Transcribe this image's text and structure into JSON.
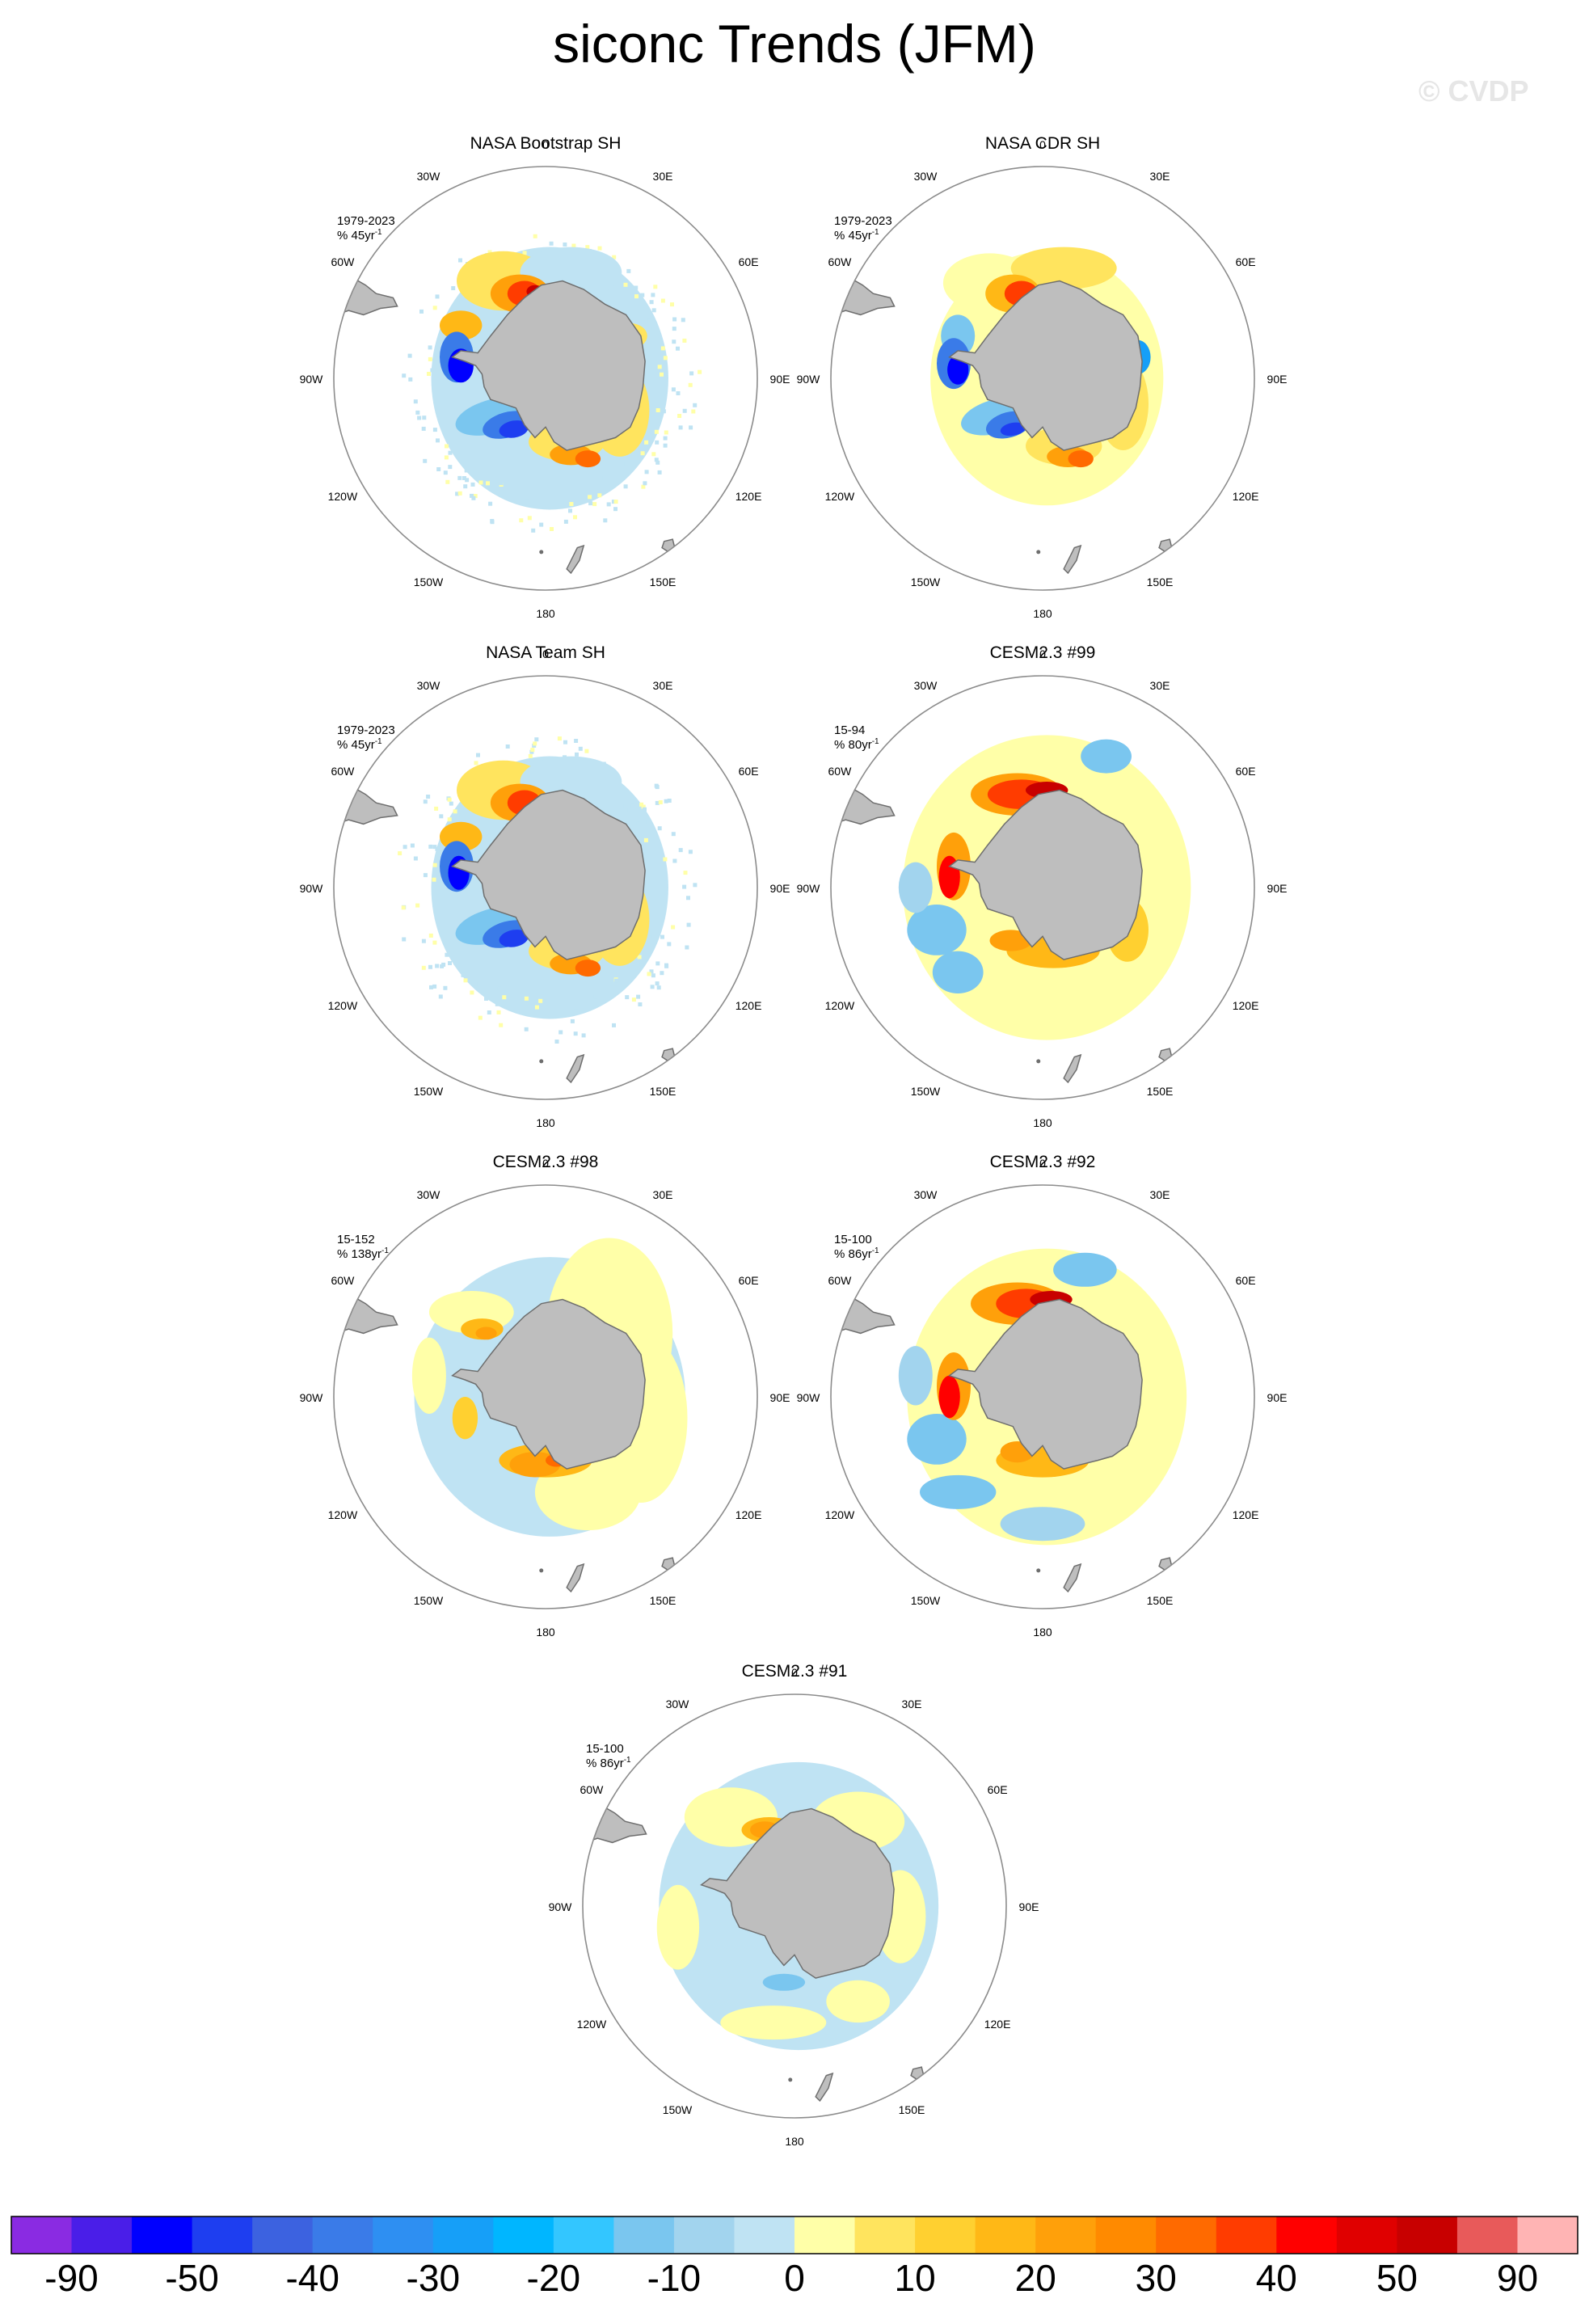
{
  "title": "siconc Trends (JFM)",
  "watermark": "© CVDP",
  "longitude_labels": [
    "0",
    "30E",
    "60E",
    "90E",
    "120E",
    "150E",
    "180",
    "150W",
    "120W",
    "90W",
    "60W",
    "30W"
  ],
  "panels": [
    {
      "title": "NASA Bootstrap SH",
      "period": "1979-2023",
      "scale_text": "% 45yr",
      "scale_sup": "-1",
      "pattern": "obs1"
    },
    {
      "title": "NASA CDR SH",
      "period": "1979-2023",
      "scale_text": "% 45yr",
      "scale_sup": "-1",
      "pattern": "obs2"
    },
    {
      "title": "NASA Team SH",
      "period": "1979-2023",
      "scale_text": "% 45yr",
      "scale_sup": "-1",
      "pattern": "obs3"
    },
    {
      "title": "CESM2.3 #99",
      "period": "15-94",
      "scale_text": "% 80yr",
      "scale_sup": "-1",
      "pattern": "m99"
    },
    {
      "title": "CESM2.3 #98",
      "period": "15-152",
      "scale_text": "% 138yr",
      "scale_sup": "-1",
      "pattern": "m98"
    },
    {
      "title": "CESM2.3 #92",
      "period": "15-100",
      "scale_text": "% 86yr",
      "scale_sup": "-1",
      "pattern": "m92"
    },
    {
      "title": "CESM2.3 #91",
      "period": "15-100",
      "scale_text": "% 86yr",
      "scale_sup": "-1",
      "pattern": "m91"
    }
  ],
  "colorbar": {
    "colors": [
      "#8a2be2",
      "#4a1ee8",
      "#0000ff",
      "#1e3ef0",
      "#3c62e0",
      "#3a7be8",
      "#2e8ff2",
      "#169ff8",
      "#00b6ff",
      "#33c6ff",
      "#7ac6ef",
      "#a2d4ee",
      "#bfe3f3",
      "#ffffa8",
      "#ffe45e",
      "#ffd030",
      "#ffb816",
      "#ffa00a",
      "#ff8a00",
      "#ff6a00",
      "#ff3c00",
      "#ff0000",
      "#e00000",
      "#c80000",
      "#e85a5a",
      "#ffb4b4"
    ],
    "labels": [
      "-90",
      "-50",
      "-40",
      "-30",
      "-20",
      "-10",
      "0",
      "10",
      "20",
      "30",
      "40",
      "50",
      "90"
    ]
  },
  "colors": {
    "land": "#bebebe",
    "land_edge": "#6e6e6e",
    "circle": "#8c8c8c"
  }
}
